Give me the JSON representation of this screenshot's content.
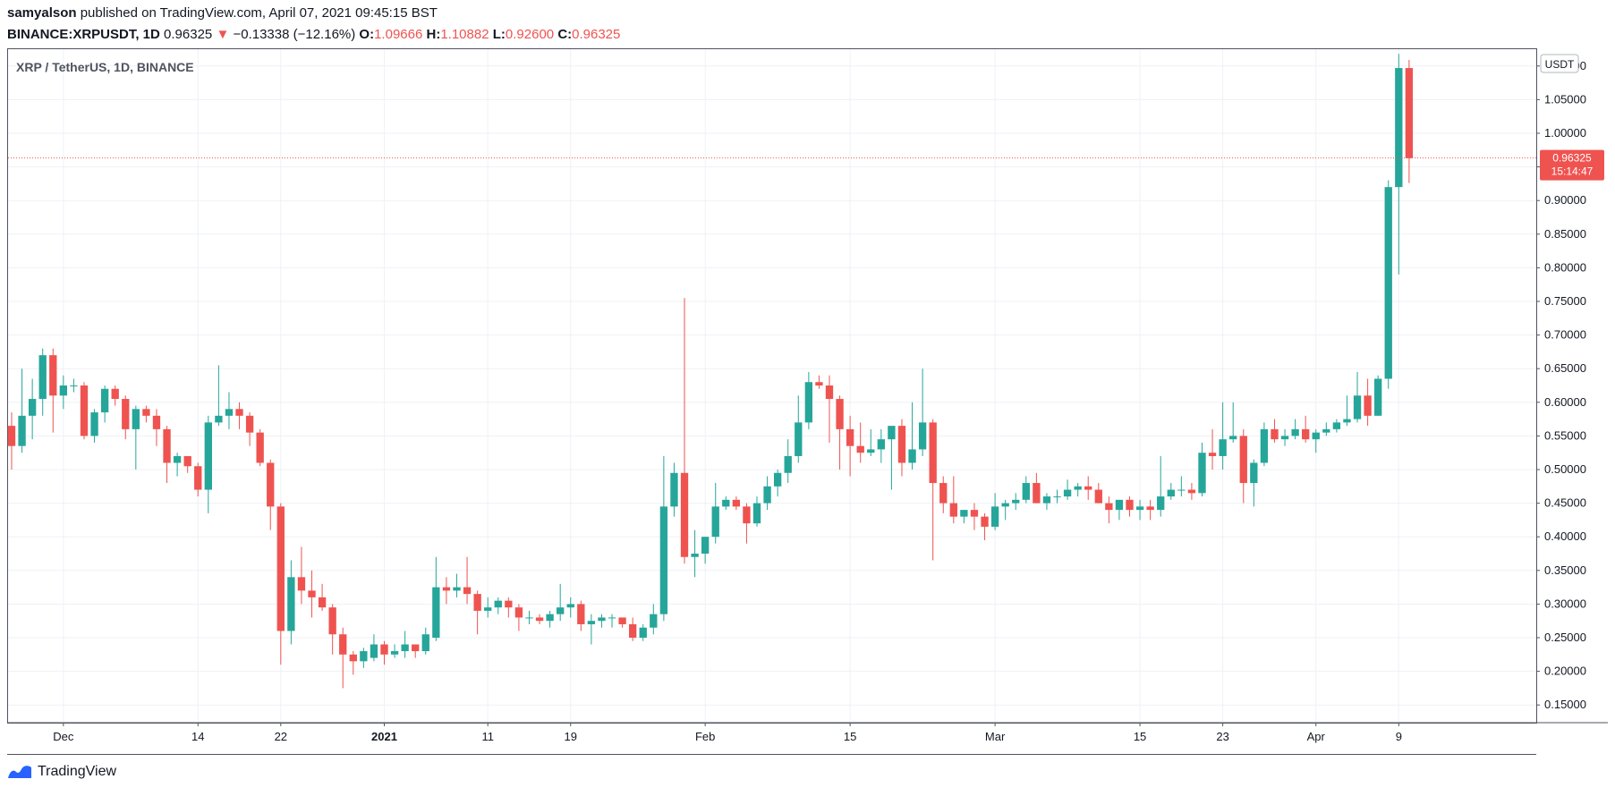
{
  "header": {
    "publisher": "samyalson",
    "published_text": "published on TradingView.com, April 07, 2021 09:45:15 BST",
    "symbol": "BINANCE:XRPUSDT, 1D",
    "last": "0.96325",
    "change_arrow": "▼",
    "change": "−0.13338 (−12.16%)",
    "o_label": "O:",
    "o_value": "1.09666",
    "h_label": "H:",
    "h_value": "1.10882",
    "l_label": "L:",
    "l_value": "0.92600",
    "c_label": "C:",
    "c_value": "0.96325"
  },
  "brand": {
    "name": "TradingView",
    "icon": "tradingview-logo-icon"
  },
  "colors": {
    "up": "#26a69a",
    "down": "#ef5350",
    "grid": "#eef1f6",
    "axis_text": "#131722"
  },
  "chart_data": {
    "type": "candlestick",
    "title": "XRP / TetherUS, 1D, BINANCE",
    "currency_label": "USDT",
    "ylim": [
      0.125,
      1.125
    ],
    "y_ticks": [
      "0.15000",
      "0.20000",
      "0.25000",
      "0.30000",
      "0.35000",
      "0.40000",
      "0.45000",
      "0.50000",
      "0.55000",
      "0.60000",
      "0.65000",
      "0.70000",
      "0.75000",
      "0.80000",
      "0.85000",
      "0.90000",
      "0.95000",
      "1.00000",
      "1.05000",
      "1.10000"
    ],
    "x_ticks": [
      {
        "label": "Dec",
        "date": "2020-12-01",
        "bold": false
      },
      {
        "label": "14",
        "date": "2020-12-14",
        "bold": false
      },
      {
        "label": "22",
        "date": "2020-12-22",
        "bold": false
      },
      {
        "label": "2021",
        "date": "2021-01-01",
        "bold": true
      },
      {
        "label": "11",
        "date": "2021-01-11",
        "bold": false
      },
      {
        "label": "19",
        "date": "2021-01-19",
        "bold": false
      },
      {
        "label": "Feb",
        "date": "2021-02-01",
        "bold": false
      },
      {
        "label": "15",
        "date": "2021-02-15",
        "bold": false
      },
      {
        "label": "Mar",
        "date": "2021-03-01",
        "bold": false
      },
      {
        "label": "15",
        "date": "2021-03-15",
        "bold": false
      },
      {
        "label": "23",
        "date": "2021-03-23",
        "bold": false
      },
      {
        "label": "Apr",
        "date": "2021-04-01",
        "bold": false
      },
      {
        "label": "9",
        "date": "2021-04-09",
        "bold": false
      }
    ],
    "first_date": "2020-11-26",
    "last_date": "2021-04-07",
    "x_range_end_date": "2021-04-19",
    "ohlc": [
      [
        0.565,
        0.585,
        0.5,
        0.535
      ],
      [
        0.535,
        0.65,
        0.525,
        0.58
      ],
      [
        0.58,
        0.635,
        0.545,
        0.605
      ],
      [
        0.605,
        0.68,
        0.58,
        0.67
      ],
      [
        0.67,
        0.68,
        0.555,
        0.61
      ],
      [
        0.61,
        0.64,
        0.59,
        0.625
      ],
      [
        0.625,
        0.635,
        0.615,
        0.625
      ],
      [
        0.625,
        0.63,
        0.545,
        0.55
      ],
      [
        0.55,
        0.59,
        0.54,
        0.585
      ],
      [
        0.585,
        0.625,
        0.57,
        0.62
      ],
      [
        0.62,
        0.625,
        0.595,
        0.605
      ],
      [
        0.605,
        0.61,
        0.545,
        0.56
      ],
      [
        0.56,
        0.595,
        0.5,
        0.59
      ],
      [
        0.59,
        0.595,
        0.57,
        0.58
      ],
      [
        0.58,
        0.59,
        0.535,
        0.56
      ],
      [
        0.56,
        0.565,
        0.48,
        0.51
      ],
      [
        0.51,
        0.525,
        0.49,
        0.52
      ],
      [
        0.52,
        0.52,
        0.495,
        0.505
      ],
      [
        0.505,
        0.51,
        0.46,
        0.47
      ],
      [
        0.47,
        0.58,
        0.435,
        0.57
      ],
      [
        0.57,
        0.655,
        0.565,
        0.58
      ],
      [
        0.58,
        0.615,
        0.56,
        0.59
      ],
      [
        0.59,
        0.6,
        0.56,
        0.58
      ],
      [
        0.58,
        0.585,
        0.535,
        0.555
      ],
      [
        0.555,
        0.56,
        0.505,
        0.51
      ],
      [
        0.51,
        0.515,
        0.41,
        0.445
      ],
      [
        0.445,
        0.45,
        0.21,
        0.26
      ],
      [
        0.26,
        0.365,
        0.24,
        0.34
      ],
      [
        0.34,
        0.385,
        0.3,
        0.32
      ],
      [
        0.32,
        0.35,
        0.28,
        0.31
      ],
      [
        0.31,
        0.33,
        0.29,
        0.295
      ],
      [
        0.295,
        0.3,
        0.225,
        0.255
      ],
      [
        0.255,
        0.265,
        0.175,
        0.225
      ],
      [
        0.225,
        0.23,
        0.195,
        0.215
      ],
      [
        0.215,
        0.235,
        0.205,
        0.23
      ],
      [
        0.22,
        0.255,
        0.215,
        0.24
      ],
      [
        0.24,
        0.245,
        0.21,
        0.225
      ],
      [
        0.225,
        0.24,
        0.22,
        0.23
      ],
      [
        0.23,
        0.26,
        0.22,
        0.24
      ],
      [
        0.24,
        0.24,
        0.22,
        0.23
      ],
      [
        0.23,
        0.265,
        0.225,
        0.255
      ],
      [
        0.25,
        0.37,
        0.245,
        0.325
      ],
      [
        0.325,
        0.34,
        0.3,
        0.32
      ],
      [
        0.32,
        0.345,
        0.31,
        0.325
      ],
      [
        0.325,
        0.37,
        0.3,
        0.315
      ],
      [
        0.315,
        0.32,
        0.255,
        0.29
      ],
      [
        0.29,
        0.31,
        0.28,
        0.295
      ],
      [
        0.295,
        0.31,
        0.285,
        0.305
      ],
      [
        0.305,
        0.31,
        0.28,
        0.295
      ],
      [
        0.295,
        0.3,
        0.26,
        0.28
      ],
      [
        0.28,
        0.29,
        0.27,
        0.28
      ],
      [
        0.28,
        0.285,
        0.27,
        0.275
      ],
      [
        0.275,
        0.29,
        0.265,
        0.285
      ],
      [
        0.285,
        0.33,
        0.275,
        0.295
      ],
      [
        0.295,
        0.31,
        0.28,
        0.3
      ],
      [
        0.3,
        0.305,
        0.26,
        0.27
      ],
      [
        0.27,
        0.285,
        0.24,
        0.275
      ],
      [
        0.275,
        0.285,
        0.265,
        0.28
      ],
      [
        0.28,
        0.285,
        0.265,
        0.28
      ],
      [
        0.28,
        0.28,
        0.265,
        0.27
      ],
      [
        0.27,
        0.28,
        0.245,
        0.25
      ],
      [
        0.25,
        0.27,
        0.245,
        0.265
      ],
      [
        0.265,
        0.3,
        0.255,
        0.285
      ],
      [
        0.285,
        0.52,
        0.275,
        0.445
      ],
      [
        0.445,
        0.51,
        0.43,
        0.495
      ],
      [
        0.495,
        0.755,
        0.36,
        0.37
      ],
      [
        0.37,
        0.41,
        0.34,
        0.375
      ],
      [
        0.375,
        0.4,
        0.36,
        0.4
      ],
      [
        0.4,
        0.48,
        0.39,
        0.445
      ],
      [
        0.445,
        0.46,
        0.44,
        0.455
      ],
      [
        0.455,
        0.46,
        0.44,
        0.445
      ],
      [
        0.445,
        0.45,
        0.39,
        0.42
      ],
      [
        0.42,
        0.46,
        0.415,
        0.45
      ],
      [
        0.45,
        0.49,
        0.44,
        0.475
      ],
      [
        0.475,
        0.5,
        0.46,
        0.495
      ],
      [
        0.495,
        0.545,
        0.48,
        0.52
      ],
      [
        0.52,
        0.61,
        0.51,
        0.57
      ],
      [
        0.57,
        0.645,
        0.56,
        0.63
      ],
      [
        0.63,
        0.64,
        0.62,
        0.625
      ],
      [
        0.625,
        0.64,
        0.54,
        0.605
      ],
      [
        0.605,
        0.61,
        0.5,
        0.56
      ],
      [
        0.56,
        0.58,
        0.49,
        0.535
      ],
      [
        0.535,
        0.57,
        0.51,
        0.525
      ],
      [
        0.525,
        0.56,
        0.52,
        0.53
      ],
      [
        0.53,
        0.56,
        0.51,
        0.545
      ],
      [
        0.545,
        0.555,
        0.47,
        0.565
      ],
      [
        0.565,
        0.575,
        0.49,
        0.51
      ],
      [
        0.51,
        0.6,
        0.5,
        0.53
      ],
      [
        0.53,
        0.65,
        0.52,
        0.57
      ],
      [
        0.57,
        0.575,
        0.365,
        0.48
      ],
      [
        0.48,
        0.49,
        0.435,
        0.45
      ],
      [
        0.45,
        0.49,
        0.42,
        0.43
      ],
      [
        0.43,
        0.44,
        0.42,
        0.44
      ],
      [
        0.44,
        0.45,
        0.41,
        0.43
      ],
      [
        0.43,
        0.435,
        0.395,
        0.415
      ],
      [
        0.415,
        0.465,
        0.41,
        0.445
      ],
      [
        0.445,
        0.455,
        0.425,
        0.45
      ],
      [
        0.45,
        0.465,
        0.44,
        0.455
      ],
      [
        0.455,
        0.49,
        0.45,
        0.48
      ],
      [
        0.48,
        0.495,
        0.45,
        0.45
      ],
      [
        0.45,
        0.465,
        0.44,
        0.46
      ],
      [
        0.46,
        0.47,
        0.45,
        0.46
      ],
      [
        0.46,
        0.485,
        0.455,
        0.47
      ],
      [
        0.47,
        0.48,
        0.46,
        0.475
      ],
      [
        0.475,
        0.49,
        0.455,
        0.47
      ],
      [
        0.47,
        0.48,
        0.45,
        0.45
      ],
      [
        0.45,
        0.46,
        0.42,
        0.44
      ],
      [
        0.44,
        0.45,
        0.425,
        0.455
      ],
      [
        0.455,
        0.46,
        0.43,
        0.44
      ],
      [
        0.44,
        0.455,
        0.425,
        0.445
      ],
      [
        0.445,
        0.455,
        0.425,
        0.44
      ],
      [
        0.44,
        0.52,
        0.43,
        0.46
      ],
      [
        0.46,
        0.48,
        0.455,
        0.47
      ],
      [
        0.47,
        0.49,
        0.46,
        0.47
      ],
      [
        0.47,
        0.48,
        0.455,
        0.465
      ],
      [
        0.465,
        0.54,
        0.46,
        0.525
      ],
      [
        0.525,
        0.56,
        0.5,
        0.52
      ],
      [
        0.52,
        0.6,
        0.5,
        0.545
      ],
      [
        0.545,
        0.6,
        0.54,
        0.55
      ],
      [
        0.55,
        0.56,
        0.45,
        0.48
      ],
      [
        0.48,
        0.515,
        0.445,
        0.51
      ],
      [
        0.51,
        0.57,
        0.505,
        0.56
      ],
      [
        0.56,
        0.575,
        0.54,
        0.545
      ],
      [
        0.545,
        0.56,
        0.535,
        0.55
      ],
      [
        0.55,
        0.575,
        0.545,
        0.56
      ],
      [
        0.56,
        0.58,
        0.54,
        0.545
      ],
      [
        0.545,
        0.56,
        0.525,
        0.555
      ],
      [
        0.555,
        0.57,
        0.55,
        0.56
      ],
      [
        0.56,
        0.575,
        0.555,
        0.57
      ],
      [
        0.57,
        0.61,
        0.565,
        0.575
      ],
      [
        0.575,
        0.645,
        0.57,
        0.61
      ],
      [
        0.61,
        0.635,
        0.565,
        0.58
      ],
      [
        0.58,
        0.64,
        0.58,
        0.635
      ],
      [
        0.635,
        0.93,
        0.62,
        0.92
      ],
      [
        0.92,
        1.118,
        0.79,
        1.097
      ],
      [
        1.097,
        1.109,
        0.926,
        0.963
      ]
    ],
    "last_price_label": "0.96325",
    "countdown_label": "15:14:47"
  }
}
